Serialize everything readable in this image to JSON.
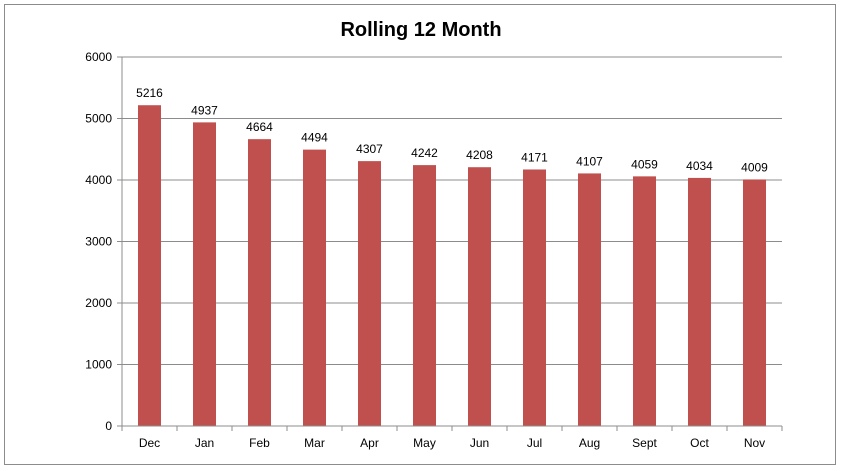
{
  "chart_data": {
    "type": "bar",
    "title": "Rolling 12 Month",
    "xlabel": "",
    "ylabel": "",
    "categories": [
      "Dec",
      "Jan",
      "Feb",
      "Mar",
      "Apr",
      "May",
      "Jun",
      "Jul",
      "Aug",
      "Sept",
      "Oct",
      "Nov"
    ],
    "series": [
      {
        "values": [
          5216,
          4937,
          4664,
          4494,
          4307,
          4242,
          4208,
          4171,
          4107,
          4059,
          4034,
          4009
        ],
        "color": "#c0504d"
      }
    ],
    "ylim": [
      0,
      6000
    ],
    "yticks": [
      "0",
      "1000",
      "2000",
      "3000",
      "4000",
      "5000",
      "6000"
    ],
    "grid": true,
    "legend": "none",
    "data_labels": true
  }
}
